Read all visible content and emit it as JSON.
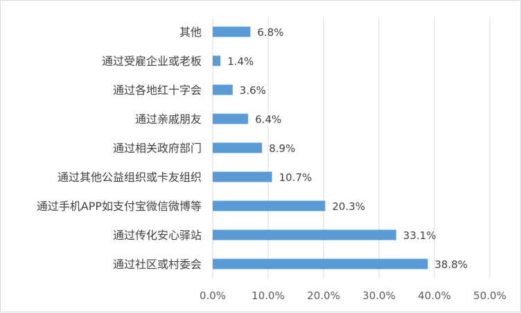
{
  "chart_data": {
    "type": "bar",
    "orientation": "horizontal",
    "categories": [
      "其他",
      "通过受雇企业或老板",
      "通过各地红十字会",
      "通过亲戚朋友",
      "通过相关政府部门",
      "通过其他公益组织或卡友组织",
      "通过手机APP如支付宝微信微博等",
      "通过传化安心驿站",
      "通过社区或村委会"
    ],
    "values": [
      6.8,
      1.4,
      3.6,
      6.4,
      8.9,
      10.7,
      20.3,
      33.1,
      38.8
    ],
    "data_labels": [
      "6.8%",
      "1.4%",
      "3.6%",
      "6.4%",
      "8.9%",
      "10.7%",
      "20.3%",
      "33.1%",
      "38.8%"
    ],
    "xlim": [
      0,
      50
    ],
    "x_ticks": [
      0,
      10,
      20,
      30,
      40,
      50
    ],
    "x_tick_labels": [
      "0.0%",
      "10.0%",
      "20.0%",
      "30.0%",
      "40.0%",
      "50.0%"
    ],
    "grid": "vertical",
    "bar_color": "#5b9bd5",
    "grid_color": "#d9d9d9",
    "text_color": "#404040",
    "title": "",
    "xlabel": "",
    "ylabel": ""
  }
}
